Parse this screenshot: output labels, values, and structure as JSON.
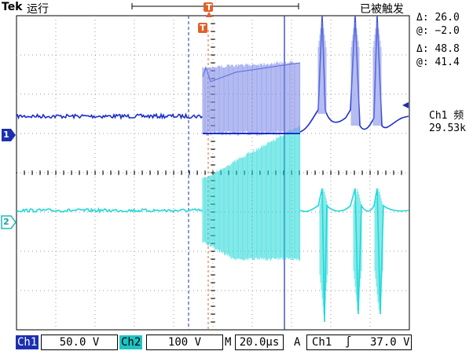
{
  "header": {
    "brand": "Tek",
    "run_state": "运行",
    "trigger_state": "已被触发",
    "trigger_marker": "T"
  },
  "cursor_readout": {
    "delta_1": "Δ:  26.0",
    "at_1": "@: −2.0",
    "delta_2": "Δ:  48.8",
    "at_2": "@:  41.4"
  },
  "measurement": {
    "label": "Ch1 频",
    "value": "29.53k"
  },
  "channels": {
    "ch1_marker": "1",
    "ch2_marker": "2",
    "ch1_color": "#1c2fc8",
    "ch2_color": "#22d8d8"
  },
  "bottom_bar": {
    "ch1_label": "Ch1",
    "ch1_scale": "50.0 V",
    "ch2_label": "Ch2",
    "ch2_scale": "100 V",
    "timebase_label": "M",
    "timebase": "20.0µs",
    "trigger_mode": "A",
    "trigger_source": "Ch1",
    "trigger_slope": "∫",
    "trigger_level": "37.0 V"
  }
}
